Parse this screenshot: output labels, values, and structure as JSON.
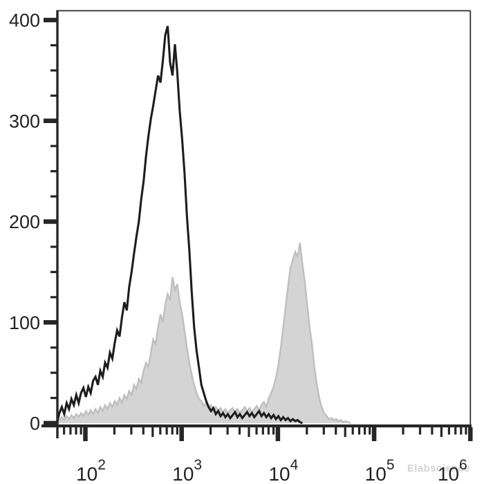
{
  "watermark": {
    "text": "Elabscience",
    "color": "#cccccc"
  },
  "colors": {
    "background": "#ffffff",
    "axis": "#262626",
    "tick_label": "#222222",
    "black_curve": "#1d1d1d",
    "gray_fill": "#d4d4d4",
    "gray_stroke": "#bfbfbf"
  },
  "chart_data": {
    "type": "line",
    "subtype": "flow-cytometry-overlay-histogram",
    "title": "",
    "xlabel": "",
    "ylabel": "",
    "grid": false,
    "legend": "none",
    "x_scale": "log10",
    "x_axis": {
      "min_log10": 1.705,
      "max_log10": 6.0,
      "major_tick_exponents": [
        2,
        3,
        4,
        5,
        6
      ],
      "major_tick_labels": [
        {
          "base": "10",
          "exponent": "2"
        },
        {
          "base": "10",
          "exponent": "3"
        },
        {
          "base": "10",
          "exponent": "4"
        },
        {
          "base": "10",
          "exponent": "5"
        },
        {
          "base": "10",
          "exponent": "6"
        }
      ],
      "minor_tick_mantissas": [
        2,
        3,
        4,
        5,
        6,
        7,
        8,
        9
      ]
    },
    "y_axis": {
      "min": 0,
      "max": 400,
      "major_ticks": [
        0,
        100,
        200,
        300,
        400
      ],
      "major_tick_labels": [
        "0",
        "100",
        "200",
        "300",
        "400"
      ],
      "minor_tick_step": 25
    },
    "series": [
      {
        "name": "gray-filled-histogram",
        "style": "filled",
        "fill": "#d4d4d4",
        "stroke": "#bfbfbf",
        "x_log10_start": 1.705,
        "x_log10_step": 0.025,
        "values": [
          1,
          3,
          6,
          3,
          7,
          4,
          8,
          5,
          9,
          6,
          10,
          7,
          12,
          8,
          13,
          9,
          14,
          10,
          16,
          12,
          18,
          14,
          20,
          16,
          22,
          18,
          25,
          20,
          28,
          24,
          32,
          28,
          38,
          34,
          44,
          40,
          52,
          60,
          56,
          70,
          83,
          78,
          95,
          108,
          100,
          118,
          128,
          122,
          145,
          132,
          138,
          120,
          108,
          92,
          75,
          60,
          48,
          38,
          30,
          24,
          22,
          17,
          20,
          15,
          18,
          13,
          16,
          12,
          15,
          11,
          14,
          10,
          13,
          15,
          11,
          14,
          10,
          13,
          16,
          12,
          15,
          11,
          14,
          17,
          13,
          18,
          21,
          16,
          25,
          30,
          36,
          45,
          58,
          75,
          95,
          115,
          135,
          154,
          162,
          170,
          165,
          179,
          158,
          140,
          117,
          95,
          78,
          55,
          38,
          25,
          16,
          10,
          7,
          4,
          5,
          3,
          4,
          2,
          3,
          1,
          2,
          1,
          0
        ]
      },
      {
        "name": "black-open-histogram",
        "style": "open",
        "stroke": "#1d1d1d",
        "x_log10_start": 1.705,
        "x_log10_step": 0.025,
        "values": [
          3,
          10,
          16,
          9,
          20,
          14,
          24,
          18,
          28,
          20,
          30,
          35,
          26,
          36,
          30,
          42,
          46,
          38,
          52,
          46,
          60,
          55,
          70,
          64,
          80,
          92,
          86,
          105,
          120,
          112,
          135,
          150,
          168,
          185,
          200,
          222,
          240,
          265,
          285,
          302,
          315,
          330,
          345,
          338,
          360,
          385,
          394,
          358,
          345,
          376,
          348,
          310,
          282,
          248,
          205,
          172,
          130,
          95,
          72,
          55,
          38,
          30,
          22,
          16,
          12,
          15,
          9,
          12,
          7,
          10,
          6,
          9,
          5,
          8,
          11,
          6,
          9,
          5,
          8,
          11,
          7,
          10,
          6,
          9,
          12,
          7,
          10,
          6,
          9,
          5,
          8,
          4,
          7,
          3,
          6,
          3,
          5,
          2,
          4,
          2,
          3,
          1,
          0
        ]
      }
    ]
  }
}
